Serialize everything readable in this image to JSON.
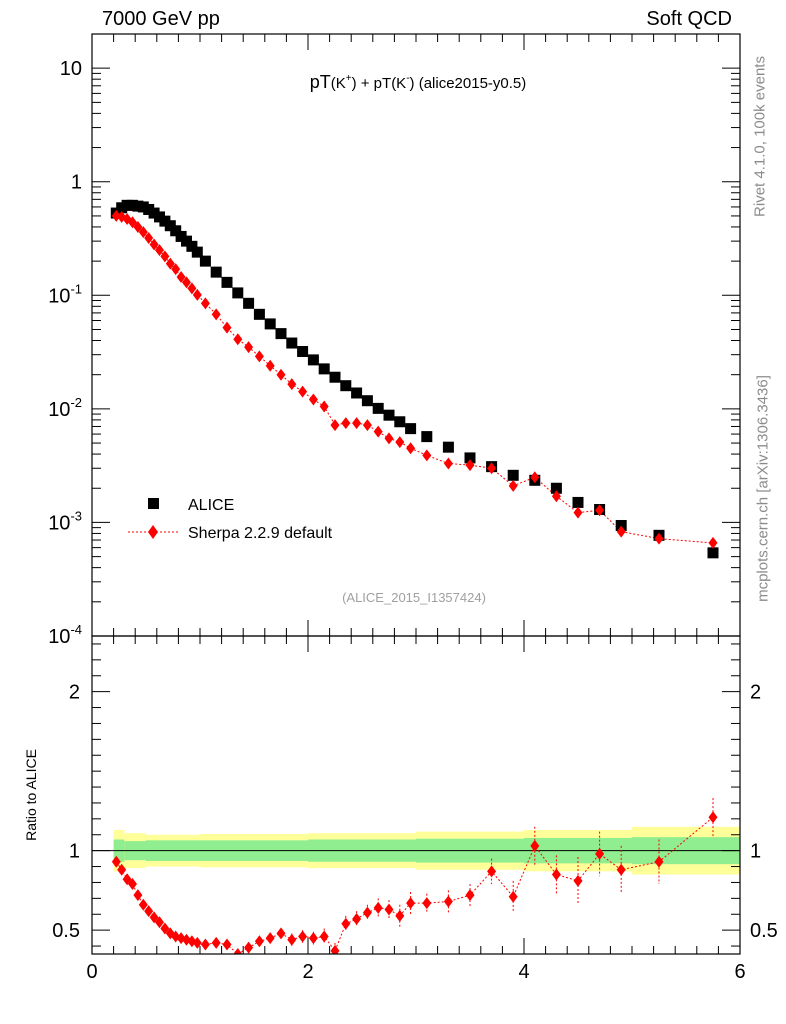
{
  "header": {
    "energy_label": "7000 GeV pp",
    "category_label": "Soft QCD"
  },
  "side_labels": {
    "rivet": "Rivet 4.1.0,  100k events",
    "mcplots": "mcplots.cern.ch [arXiv:1306.3436]"
  },
  "chart_data": [
    {
      "type": "scatter",
      "panel": "main",
      "title_parts": [
        "pT",
        "(K",
        "+",
        ") + pT(K",
        "-",
        ") (alice2015-y0.5)"
      ],
      "watermark": "(ALICE_2015_I1357424)",
      "yscale": "log",
      "ylim": [
        0.0001,
        20
      ],
      "xlim": [
        0,
        6
      ],
      "y_tick_labels": [
        {
          "base": "10",
          "exp": "-4",
          "value": 0.0001
        },
        {
          "base": "10",
          "exp": "-3",
          "value": 0.001
        },
        {
          "base": "10",
          "exp": "-2",
          "value": 0.01
        },
        {
          "base": "10",
          "exp": "-1",
          "value": 0.1
        },
        {
          "base": "1",
          "exp": "",
          "value": 1
        },
        {
          "base": "10",
          "exp": "",
          "value": 10
        }
      ],
      "legend": {
        "position": "bottom-left",
        "entries": [
          "ALICE",
          "Sherpa 2.2.9 default"
        ]
      },
      "series": [
        {
          "name": "ALICE",
          "color": "#000000",
          "marker": "square",
          "x": [
            0.225,
            0.275,
            0.325,
            0.375,
            0.425,
            0.475,
            0.525,
            0.575,
            0.625,
            0.675,
            0.725,
            0.775,
            0.825,
            0.875,
            0.925,
            0.975,
            1.05,
            1.15,
            1.25,
            1.35,
            1.45,
            1.55,
            1.65,
            1.75,
            1.85,
            1.95,
            2.05,
            2.15,
            2.25,
            2.35,
            2.45,
            2.55,
            2.65,
            2.75,
            2.85,
            2.95,
            3.1,
            3.3,
            3.5,
            3.7,
            3.9,
            4.1,
            4.3,
            4.5,
            4.7,
            4.9,
            5.25,
            5.75
          ],
          "y": [
            0.53,
            0.59,
            0.62,
            0.62,
            0.61,
            0.6,
            0.57,
            0.53,
            0.49,
            0.45,
            0.41,
            0.37,
            0.33,
            0.3,
            0.27,
            0.24,
            0.2,
            0.16,
            0.13,
            0.105,
            0.085,
            0.068,
            0.056,
            0.046,
            0.038,
            0.032,
            0.027,
            0.0225,
            0.019,
            0.016,
            0.0138,
            0.0118,
            0.0101,
            0.0088,
            0.0077,
            0.0067,
            0.0057,
            0.0046,
            0.0037,
            0.0031,
            0.0026,
            0.00235,
            0.002,
            0.0015,
            0.0013,
            0.00094,
            0.00077,
            0.00054
          ]
        },
        {
          "name": "Sherpa 2.2.9 default",
          "color": "#ff0000",
          "marker": "diamond",
          "x": [
            0.225,
            0.275,
            0.325,
            0.375,
            0.425,
            0.475,
            0.525,
            0.575,
            0.625,
            0.675,
            0.725,
            0.775,
            0.825,
            0.875,
            0.925,
            0.975,
            1.05,
            1.15,
            1.25,
            1.35,
            1.45,
            1.55,
            1.65,
            1.75,
            1.85,
            1.95,
            2.05,
            2.15,
            2.25,
            2.35,
            2.45,
            2.55,
            2.65,
            2.75,
            2.85,
            2.95,
            3.1,
            3.3,
            3.5,
            3.7,
            3.9,
            4.1,
            4.3,
            4.5,
            4.7,
            4.9,
            5.25,
            5.75
          ],
          "y": [
            0.5,
            0.49,
            0.47,
            0.44,
            0.4,
            0.36,
            0.32,
            0.28,
            0.25,
            0.22,
            0.19,
            0.17,
            0.145,
            0.13,
            0.115,
            0.101,
            0.085,
            0.068,
            0.052,
            0.041,
            0.035,
            0.029,
            0.024,
            0.02,
            0.0165,
            0.0142,
            0.0121,
            0.0105,
            0.0072,
            0.0075,
            0.0075,
            0.0072,
            0.0063,
            0.0055,
            0.0051,
            0.0045,
            0.0039,
            0.0033,
            0.0032,
            0.003,
            0.0021,
            0.0025,
            0.0017,
            0.00122,
            0.00128,
            0.00083,
            0.00072,
            0.00066
          ]
        }
      ]
    },
    {
      "type": "scatter",
      "panel": "ratio",
      "ylabel": "Ratio to ALICE",
      "xlabel": "",
      "ylim": [
        0.35,
        2.35
      ],
      "xlim": [
        0,
        6
      ],
      "x_tick_labels": [
        "0",
        "2",
        "4",
        "6"
      ],
      "y_tick_labels": [
        "0.5",
        "1",
        "2"
      ],
      "reference_line": 1,
      "bands": {
        "x_edges": [
          0.2,
          0.3,
          0.5,
          1.0,
          2.0,
          3.0,
          4.0,
          5.0,
          6.0
        ],
        "green_halfwidth": [
          0.07,
          0.06,
          0.065,
          0.065,
          0.07,
          0.075,
          0.08,
          0.085,
          0.09
        ],
        "yellow_halfwidth": [
          0.13,
          0.11,
          0.1,
          0.105,
          0.11,
          0.12,
          0.13,
          0.15,
          0.165
        ],
        "colors": {
          "green": "#90ee90",
          "yellow": "#ffff99"
        }
      },
      "series": [
        {
          "name": "Sherpa 2.2.9 default",
          "color": "#ff0000",
          "marker": "diamond",
          "x": [
            0.225,
            0.275,
            0.325,
            0.375,
            0.425,
            0.475,
            0.525,
            0.575,
            0.625,
            0.675,
            0.725,
            0.775,
            0.825,
            0.875,
            0.925,
            0.975,
            1.05,
            1.15,
            1.25,
            1.35,
            1.45,
            1.55,
            1.65,
            1.75,
            1.85,
            1.95,
            2.05,
            2.15,
            2.25,
            2.35,
            2.45,
            2.55,
            2.65,
            2.75,
            2.85,
            2.95,
            3.1,
            3.3,
            3.5,
            3.7,
            3.9,
            4.1,
            4.3,
            4.5,
            4.7,
            4.9,
            5.25,
            5.75
          ],
          "y": [
            0.93,
            0.88,
            0.82,
            0.79,
            0.72,
            0.66,
            0.62,
            0.58,
            0.55,
            0.51,
            0.48,
            0.46,
            0.45,
            0.44,
            0.43,
            0.42,
            0.41,
            0.42,
            0.41,
            0.35,
            0.39,
            0.43,
            0.45,
            0.48,
            0.44,
            0.46,
            0.45,
            0.46,
            0.37,
            0.54,
            0.57,
            0.61,
            0.64,
            0.63,
            0.59,
            0.67,
            0.67,
            0.68,
            0.72,
            0.87,
            0.71,
            1.03,
            0.85,
            0.81,
            0.98,
            0.88,
            0.93,
            1.21
          ],
          "yerr": [
            0.02,
            0.02,
            0.02,
            0.02,
            0.02,
            0.02,
            0.02,
            0.02,
            0.02,
            0.02,
            0.02,
            0.02,
            0.02,
            0.02,
            0.02,
            0.02,
            0.02,
            0.02,
            0.02,
            0.03,
            0.03,
            0.03,
            0.03,
            0.03,
            0.04,
            0.04,
            0.04,
            0.05,
            0.05,
            0.05,
            0.05,
            0.05,
            0.06,
            0.06,
            0.07,
            0.07,
            0.06,
            0.07,
            0.07,
            0.08,
            0.1,
            0.12,
            0.12,
            0.15,
            0.14,
            0.15,
            0.14,
            0.12
          ]
        }
      ]
    }
  ]
}
